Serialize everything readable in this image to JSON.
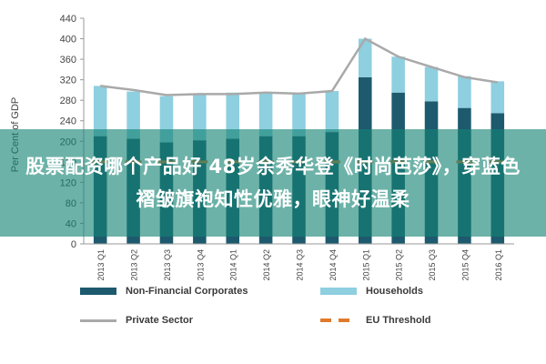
{
  "chart_data": {
    "type": "bar",
    "ylabel": "Per Cent of GDP",
    "ylim": [
      0,
      440
    ],
    "yticks": [
      0,
      40,
      80,
      120,
      160,
      200,
      240,
      280,
      320,
      360,
      400,
      440
    ],
    "categories": [
      "2013 Q1",
      "2013 Q2",
      "2013 Q3",
      "2013 Q4",
      "2014 Q1",
      "2014 Q2",
      "2014 Q3",
      "2014 Q4",
      "2015 Q1",
      "2015 Q2",
      "2015 Q3",
      "2015 Q4",
      "2016 Q1"
    ],
    "series": [
      {
        "name": "Non-Financial Corporates",
        "kind": "stacked-bar",
        "color": "#1d5a6e",
        "values": [
          210,
          205,
          198,
          202,
          205,
          210,
          210,
          218,
          325,
          295,
          278,
          265,
          255
        ]
      },
      {
        "name": "Households",
        "kind": "stacked-bar",
        "color": "#8ecfe0",
        "values": [
          98,
          92,
          90,
          90,
          90,
          85,
          82,
          80,
          75,
          70,
          67,
          62,
          62
        ]
      },
      {
        "name": "Private Sector",
        "kind": "line",
        "color": "#a9a9a9",
        "values": [
          308,
          300,
          290,
          292,
          292,
          295,
          293,
          298,
          400,
          365,
          345,
          325,
          315
        ]
      },
      {
        "name": "EU Threshold",
        "kind": "dashed-line",
        "color": "#e07a2c",
        "values": [
          160,
          160,
          160,
          160,
          160,
          160,
          160,
          160,
          160,
          160,
          160,
          160,
          160
        ]
      }
    ],
    "legend_position": "bottom",
    "grid": false
  },
  "banner": {
    "text": "股票配资哪个产品好 48岁余秀华登《时尚芭莎》，穿蓝色褶皱旗袍知性优雅，眼神好温柔"
  }
}
